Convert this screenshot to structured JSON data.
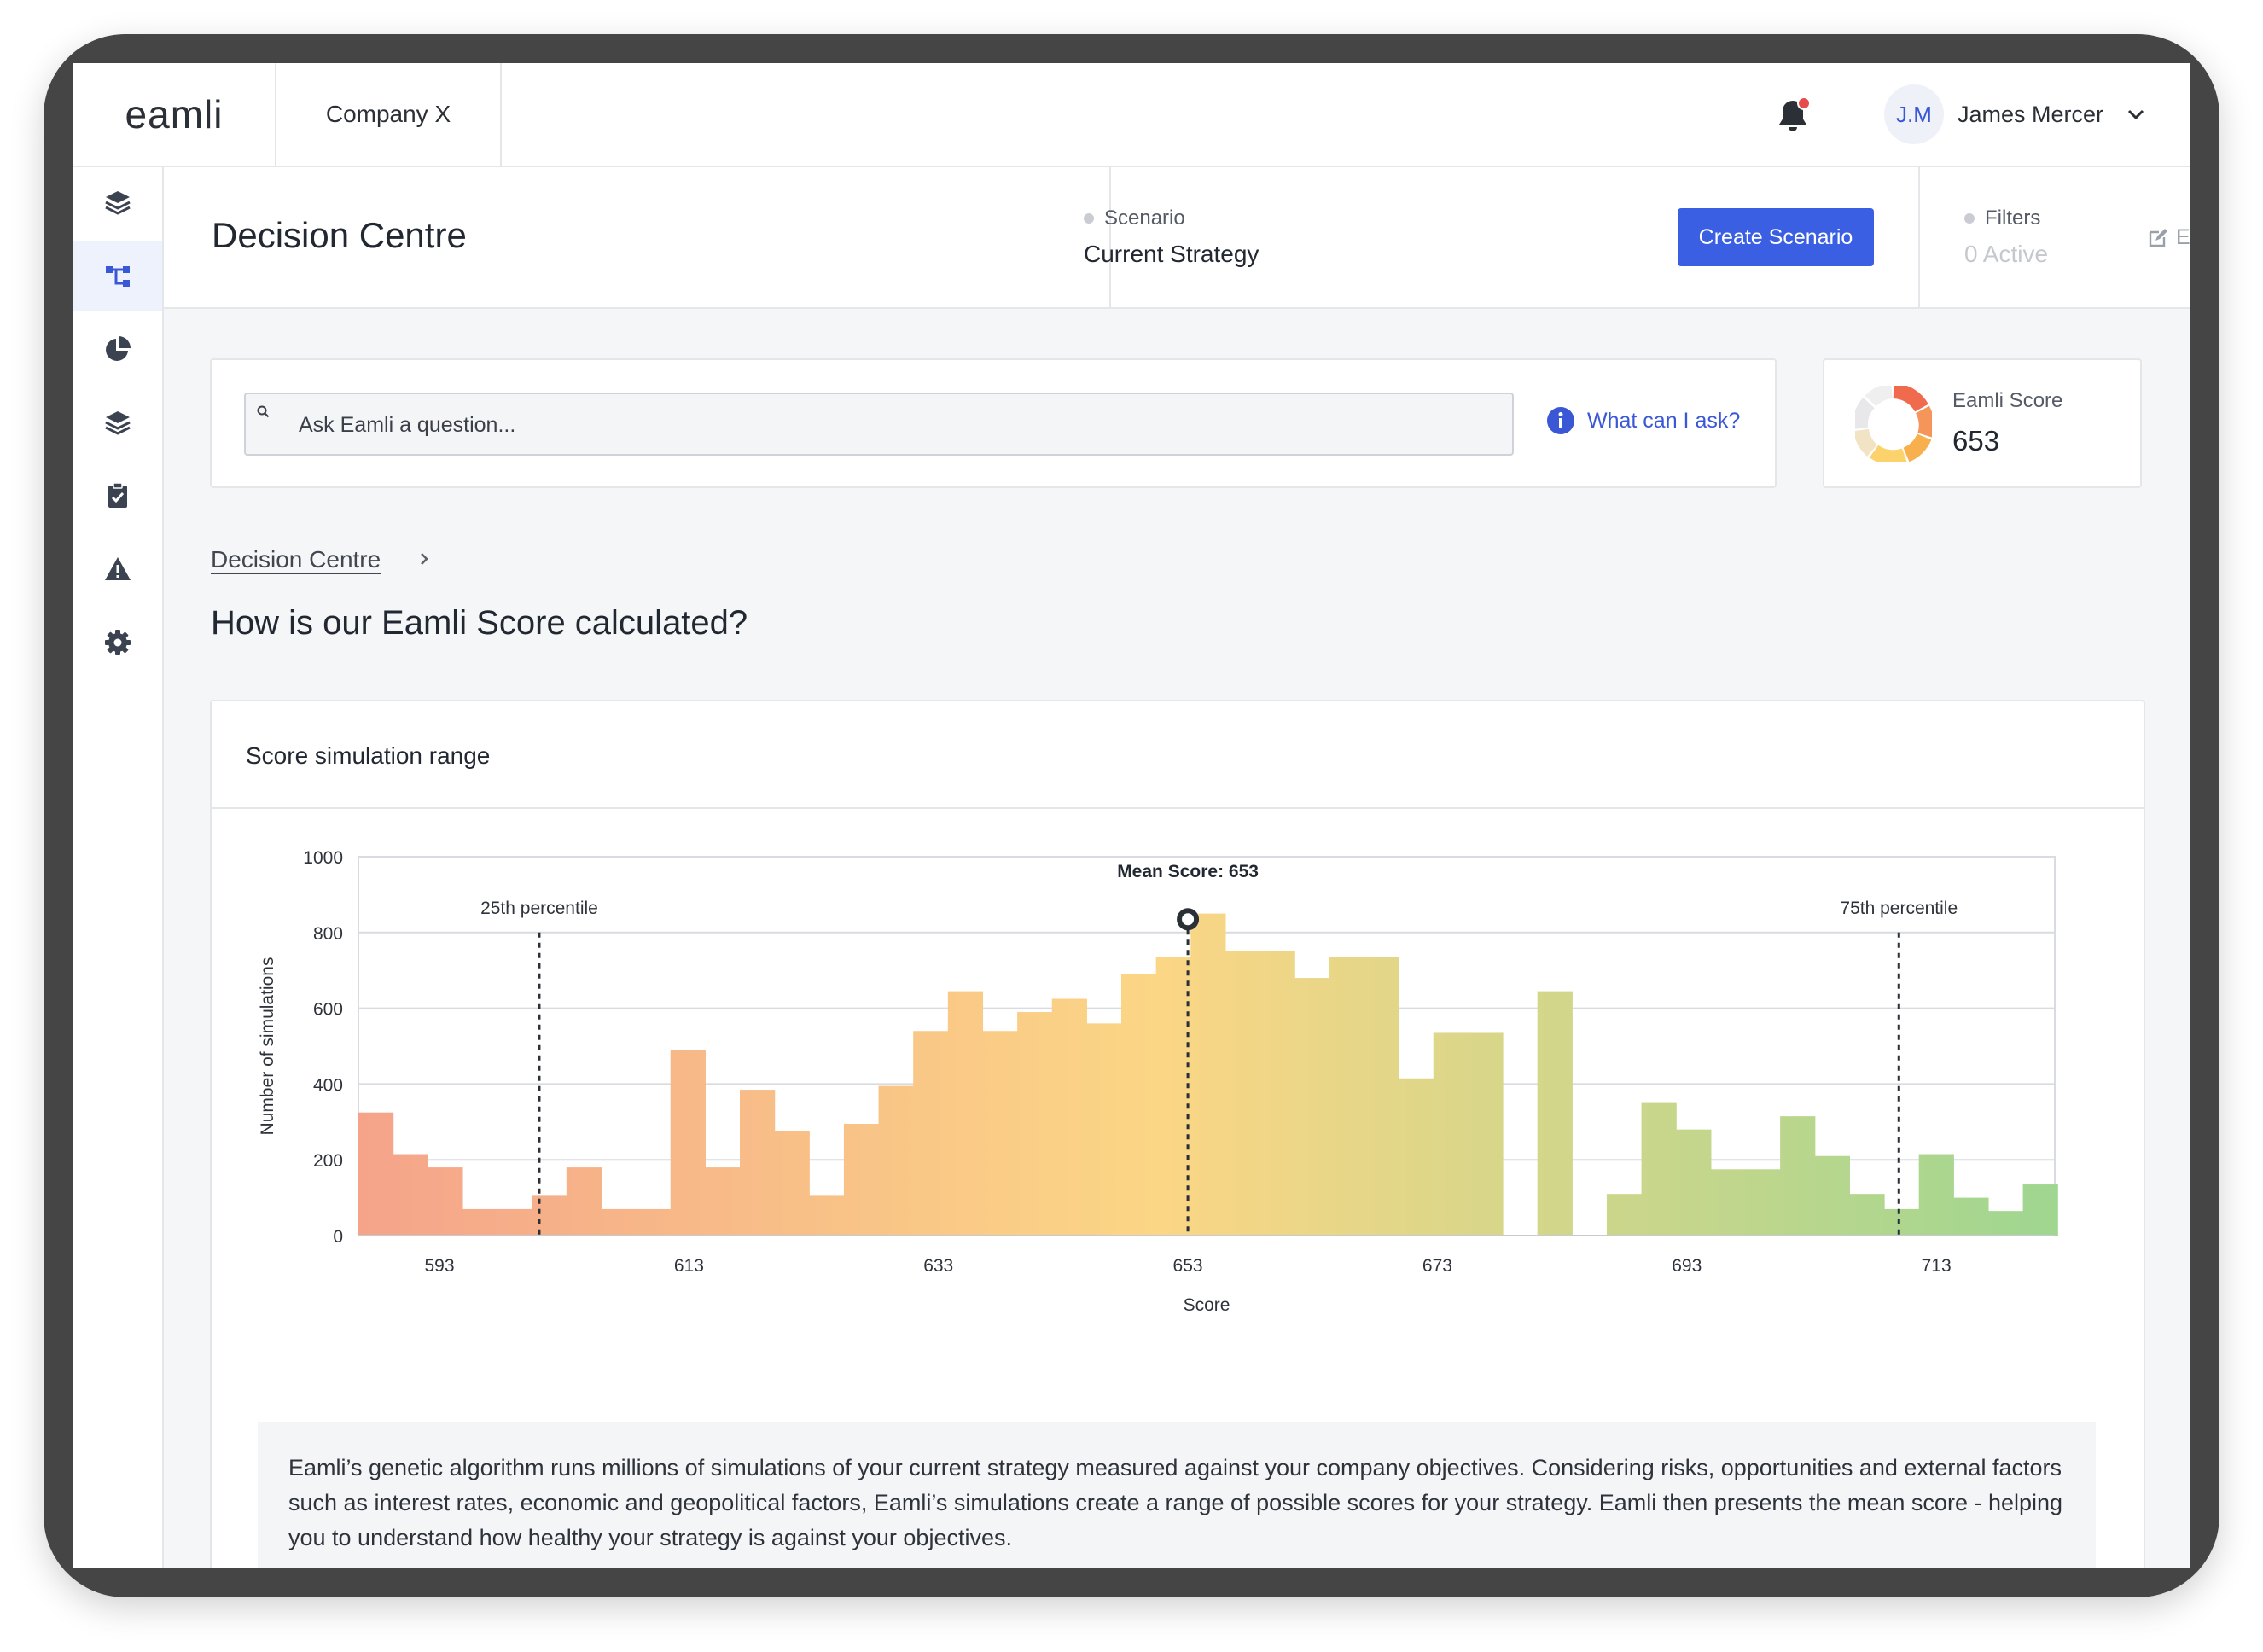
{
  "app": {
    "logo": "eamli",
    "company": "Company X"
  },
  "user": {
    "initials": "J.M",
    "name": "James Mercer"
  },
  "sidebar": {
    "items": [
      {
        "icon": "layers-icon"
      },
      {
        "icon": "decision-tree-icon",
        "active": true
      },
      {
        "icon": "pie-chart-icon"
      },
      {
        "icon": "layers-alt-icon"
      },
      {
        "icon": "clipboard-check-icon"
      },
      {
        "icon": "warning-icon"
      },
      {
        "icon": "gear-icon"
      }
    ]
  },
  "header": {
    "title": "Decision Centre",
    "scenario_label": "Scenario",
    "scenario_value": "Current Strategy",
    "create_button": "Create Scenario",
    "filters_label": "Filters",
    "filters_value": "0 Active",
    "edit_label": "Edit"
  },
  "ask": {
    "placeholder": "Ask Eamli a question...",
    "help_link": "What can I ask?"
  },
  "score": {
    "label": "Eamli Score",
    "value": "653"
  },
  "breadcrumb": {
    "item": "Decision Centre"
  },
  "page": {
    "question": "How is our Eamli Score calculated?"
  },
  "card": {
    "title": "Score simulation range",
    "description": "Eamli’s genetic algorithm runs millions of simulations of your current strategy measured against your company objectives. Considering risks, opportunities and external factors such as interest rates, economic and geopolitical factors, Eamli’s simulations create a range of possible scores for your strategy. Eamli then presents the mean score - helping you to understand how healthy your strategy is against your objectives."
  },
  "chart_data": {
    "type": "bar",
    "title": "",
    "xlabel": "Score",
    "ylabel": "Number of simulations",
    "ylim": [
      0,
      1000
    ],
    "yticks": [
      0,
      200,
      400,
      600,
      800,
      1000
    ],
    "xlim": [
      586.5,
      722.5
    ],
    "xticks": [
      593,
      613,
      633,
      653,
      673,
      693,
      713
    ],
    "grid": true,
    "bin_width": 2.78,
    "bin_start": 586.5,
    "values": [
      325,
      215,
      180,
      70,
      70,
      105,
      180,
      70,
      70,
      490,
      180,
      385,
      275,
      105,
      295,
      395,
      540,
      645,
      540,
      590,
      625,
      560,
      690,
      735,
      850,
      750,
      750,
      680,
      735,
      735,
      415,
      535,
      535,
      0,
      645,
      0,
      110,
      350,
      280,
      175,
      175,
      315,
      210,
      110,
      70,
      215,
      100,
      65,
      135
    ],
    "annotations": [
      {
        "label": "25th percentile",
        "x": 601
      },
      {
        "label": "Mean Score: 653",
        "x": 653,
        "y": 835
      },
      {
        "label": "75th percentile",
        "x": 710
      }
    ],
    "colors": {
      "low": "#f5a48a",
      "mid": "#fbd685",
      "high": "#9fd690",
      "grid": "#d8dbe0",
      "marker": "#2b2f36"
    }
  }
}
